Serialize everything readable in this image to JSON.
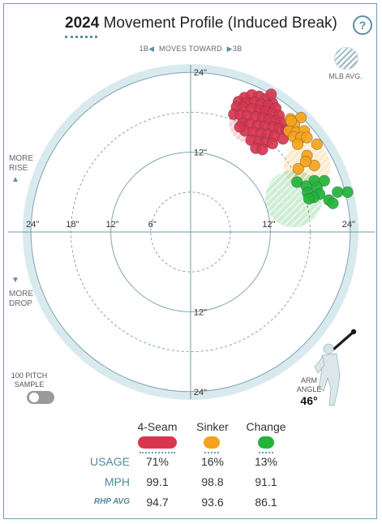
{
  "header": {
    "title_year": "2024",
    "title_text": "Movement Profile (Induced Break)",
    "help_label": "?"
  },
  "chart_labels": {
    "moves_left": "1B",
    "moves_text": "MOVES TOWARD",
    "moves_right": "3B",
    "mlb_avg": "MLB AVG.",
    "more_rise_1": "MORE",
    "more_rise_2": "RISE",
    "more_drop_1": "MORE",
    "more_drop_2": "DROP",
    "rise_arrow": "▲",
    "drop_arrow": "▼",
    "left_arrow": "◀",
    "right_arrow": "▶"
  },
  "sample_toggle": {
    "label_1": "100 PITCH",
    "label_2": "SAMPLE",
    "enabled": false
  },
  "arm_angle": {
    "label_1": "ARM",
    "label_2": "ANGLE",
    "value": "46°",
    "degrees": 46
  },
  "colors": {
    "four_seam": "#d8354f",
    "sinker": "#f5a31a",
    "change": "#22b339",
    "plot_bg": "#d9eaef",
    "ring": "#7fa4b1",
    "axis": "#6f98a6",
    "label": "#4f8a9c"
  },
  "table": {
    "pitches": [
      {
        "name": "4-Seam",
        "color": "#d8354f",
        "usage": "71%",
        "mph": "99.1",
        "rhp_avg": "94.7"
      },
      {
        "name": "Sinker",
        "color": "#f5a31a",
        "usage": "16%",
        "mph": "98.8",
        "rhp_avg": "93.6"
      },
      {
        "name": "Change",
        "color": "#22b339",
        "usage": "13%",
        "mph": "91.1",
        "rhp_avg": "86.1"
      }
    ],
    "usage_label": "USAGE",
    "mph_label": "MPH",
    "rhp_label": "RHP AVG"
  },
  "chart_data": {
    "type": "scatter",
    "title": "",
    "xlabel": "",
    "ylabel": "",
    "units": "inches",
    "xlim": [
      -30,
      30
    ],
    "ylim": [
      -30,
      30
    ],
    "rings": [
      6,
      12,
      18,
      24
    ],
    "tick_labels": {
      "left": [
        "24\"",
        "18\"",
        "12\"",
        "6\""
      ],
      "right": [
        "12\"",
        "24\""
      ],
      "top": [
        "24\"",
        "12\""
      ],
      "bottom": [
        "12\"",
        "24\""
      ]
    },
    "mlb_avg": [
      {
        "series": "4-Seam",
        "x": 9.0,
        "y": 16.5,
        "r": 3.2
      },
      {
        "series": "Sinker",
        "x": 17.5,
        "y": 10.0,
        "r": 3.5
      },
      {
        "series": "Change",
        "x": 15.5,
        "y": 5.0,
        "r": 4.3
      }
    ],
    "series": [
      {
        "name": "4-Seam",
        "color": "#d8354f",
        "points": [
          [
            8.1,
            20.2
          ],
          [
            9.2,
            20.6
          ],
          [
            10.3,
            20.4
          ],
          [
            11.3,
            20.0
          ],
          [
            12.3,
            19.4
          ],
          [
            7.2,
            19.6
          ],
          [
            8.4,
            19.4
          ],
          [
            9.6,
            19.5
          ],
          [
            10.6,
            19.2
          ],
          [
            11.7,
            19.0
          ],
          [
            12.8,
            18.6
          ],
          [
            6.9,
            18.8
          ],
          [
            8.0,
            18.7
          ],
          [
            9.2,
            18.5
          ],
          [
            10.4,
            18.3
          ],
          [
            11.3,
            18.1
          ],
          [
            12.3,
            17.8
          ],
          [
            13.3,
            17.5
          ],
          [
            6.5,
            17.7
          ],
          [
            7.5,
            17.6
          ],
          [
            8.5,
            17.4
          ],
          [
            9.8,
            17.3
          ],
          [
            10.9,
            17.1
          ],
          [
            11.8,
            16.9
          ],
          [
            12.8,
            16.7
          ],
          [
            13.6,
            16.4
          ],
          [
            7.8,
            16.3
          ],
          [
            8.9,
            16.2
          ],
          [
            10.1,
            16.0
          ],
          [
            11.2,
            15.9
          ],
          [
            12.4,
            15.7
          ],
          [
            13.3,
            15.5
          ],
          [
            14.4,
            15.3
          ],
          [
            8.2,
            15.2
          ],
          [
            9.4,
            15.0
          ],
          [
            10.6,
            14.8
          ],
          [
            11.6,
            14.7
          ],
          [
            12.6,
            14.4
          ],
          [
            13.9,
            14.0
          ],
          [
            9.1,
            13.8
          ],
          [
            10.3,
            13.6
          ],
          [
            11.3,
            13.5
          ],
          [
            12.3,
            13.3
          ],
          [
            9.8,
            12.6
          ],
          [
            10.8,
            12.4
          ],
          [
            7.4,
            15.8
          ],
          [
            12.1,
            20.7
          ]
        ]
      },
      {
        "name": "Sinker",
        "color": "#f5a31a",
        "points": [
          [
            15.0,
            17.0
          ],
          [
            16.6,
            17.2
          ],
          [
            15.6,
            16.1
          ],
          [
            14.8,
            15.2
          ],
          [
            15.9,
            15.0
          ],
          [
            17.1,
            15.2
          ],
          [
            15.5,
            14.3
          ],
          [
            16.6,
            14.2
          ],
          [
            17.5,
            14.2
          ],
          [
            16.1,
            13.2
          ],
          [
            19.0,
            13.2
          ],
          [
            17.5,
            11.5
          ],
          [
            18.6,
            10.0
          ],
          [
            16.2,
            9.5
          ],
          [
            15.1,
            16.7
          ],
          [
            17.3,
            10.6
          ]
        ]
      },
      {
        "name": "Change",
        "color": "#22b339",
        "points": [
          [
            16.0,
            7.5
          ],
          [
            18.6,
            7.7
          ],
          [
            20.1,
            7.7
          ],
          [
            17.4,
            6.9
          ],
          [
            19.0,
            6.7
          ],
          [
            17.6,
            5.9
          ],
          [
            19.4,
            5.7
          ],
          [
            22.1,
            6.0
          ],
          [
            23.6,
            6.0
          ],
          [
            18.5,
            5.2
          ],
          [
            17.8,
            5.0
          ],
          [
            20.8,
            4.8
          ],
          [
            21.4,
            4.3
          ]
        ]
      }
    ]
  }
}
